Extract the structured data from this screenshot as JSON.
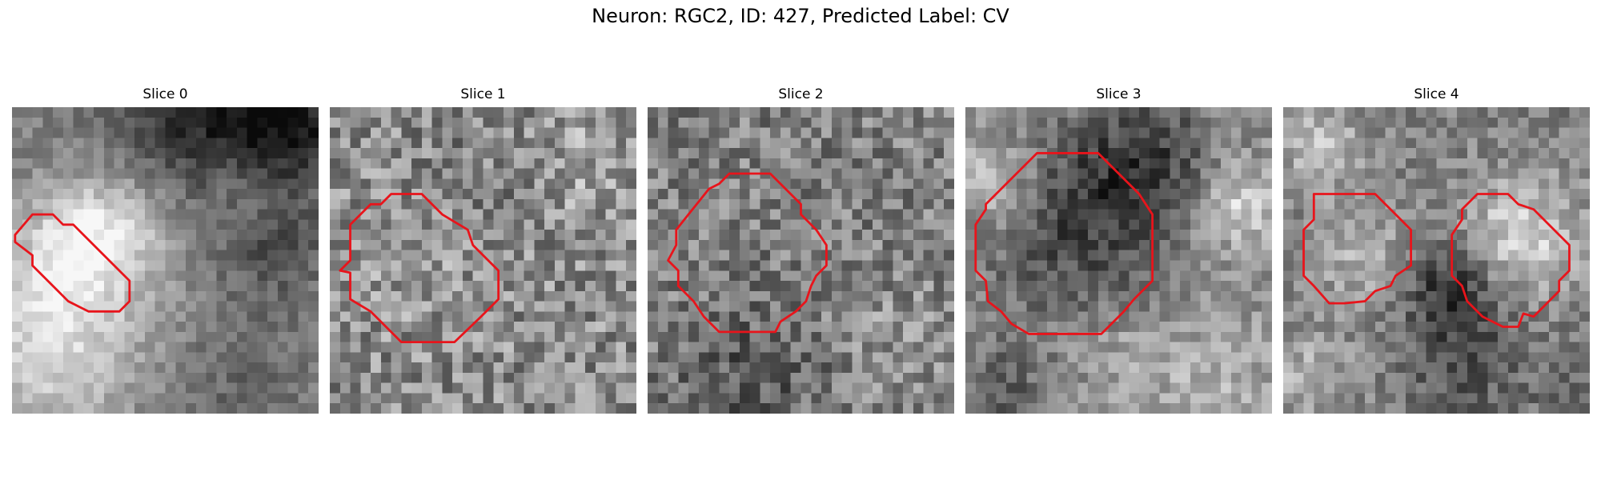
{
  "figure": {
    "title": "Neuron: RGC2, ID: 427, Predicted Label: CV"
  },
  "panels": [
    {
      "title": "Slice 0",
      "contour_color": "#e8141b"
    },
    {
      "title": "Slice 1",
      "contour_color": "#e8141b"
    },
    {
      "title": "Slice 2",
      "contour_color": "#e8141b"
    },
    {
      "title": "Slice 3",
      "contour_color": "#e8141b"
    },
    {
      "title": "Slice 4",
      "contour_color": "#e8141b"
    }
  ]
}
